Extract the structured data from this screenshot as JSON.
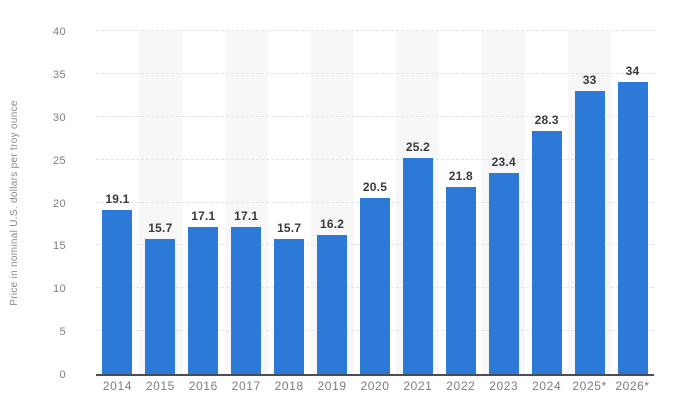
{
  "chart_data": {
    "type": "bar",
    "title": "",
    "categories": [
      "2014",
      "2015",
      "2016",
      "2017",
      "2018",
      "2019",
      "2020",
      "2021",
      "2022",
      "2023",
      "2024",
      "2025*",
      "2026*"
    ],
    "values": [
      19.1,
      15.7,
      17.1,
      17.1,
      15.7,
      16.2,
      20.5,
      25.2,
      21.8,
      23.4,
      28.3,
      33,
      34
    ],
    "value_labels": [
      "19.1",
      "15.7",
      "17.1",
      "17.1",
      "15.7",
      "16.2",
      "20.5",
      "25.2",
      "21.8",
      "23.4",
      "28.3",
      "33",
      "34"
    ],
    "xlabel": "",
    "ylabel": "Price in nominal U.S. dollars per troy ounce",
    "ylim": [
      0,
      40
    ],
    "yticks": [
      0,
      5,
      10,
      15,
      20,
      25,
      30,
      35,
      40
    ],
    "grid": "horizontal-dashed",
    "legend": "none",
    "band_columns": "alternating-even-years",
    "colors": {
      "bar": "#2c79d8",
      "band": "#f7f7f7",
      "gridline": "#e3e3e3",
      "axis_line": "#4d4d4d",
      "value_label": "#3a3a3a",
      "tick_label": "#7d7d7d",
      "axis_title": "#8a8a8a",
      "background": "#ffffff"
    }
  }
}
